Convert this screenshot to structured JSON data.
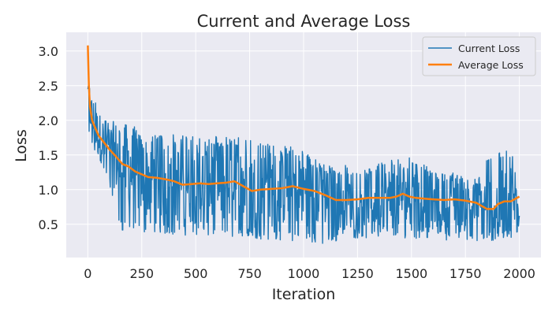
{
  "chart_data": {
    "type": "line",
    "title": "Current and Average Loss",
    "xlabel": "Iteration",
    "ylabel": "Loss",
    "xlim": [
      -100,
      2100
    ],
    "ylim": [
      0.02,
      3.27
    ],
    "xticks": [
      0,
      250,
      500,
      750,
      1000,
      1250,
      1500,
      1750,
      2000
    ],
    "yticks": [
      0.5,
      1.0,
      1.5,
      2.0,
      2.5,
      3.0
    ],
    "xtick_labels": [
      "0",
      "250",
      "500",
      "750",
      "1000",
      "1250",
      "1500",
      "1750",
      "2000"
    ],
    "ytick_labels": [
      "0.5",
      "1.0",
      "1.5",
      "2.0",
      "2.5",
      "3.0"
    ],
    "grid": true,
    "legend_position": "top-right",
    "series": [
      {
        "name": "Current Loss",
        "color": "#1f77b4",
        "style": "noisy",
        "min_band": [
          [
            0,
            1.75
          ],
          [
            100,
            1.05
          ],
          [
            150,
            0.4
          ],
          [
            400,
            0.35
          ],
          [
            700,
            0.3
          ],
          [
            1000,
            0.25
          ],
          [
            1100,
            0.2
          ],
          [
            1200,
            0.3
          ],
          [
            1500,
            0.3
          ],
          [
            1800,
            0.25
          ],
          [
            2000,
            0.3
          ]
        ],
        "max_band": [
          [
            0,
            2.5
          ],
          [
            100,
            2.0
          ],
          [
            150,
            1.95
          ],
          [
            400,
            1.8
          ],
          [
            700,
            1.75
          ],
          [
            1000,
            1.6
          ],
          [
            1100,
            1.35
          ],
          [
            1300,
            1.35
          ],
          [
            1460,
            1.5
          ],
          [
            1600,
            1.3
          ],
          [
            1800,
            1.2
          ],
          [
            1850,
            1.55
          ],
          [
            2000,
            1.58
          ]
        ]
      },
      {
        "name": "Average Loss",
        "color": "#ff7f0e",
        "x": [
          0,
          5,
          10,
          20,
          30,
          50,
          70,
          100,
          130,
          160,
          190,
          220,
          250,
          280,
          320,
          360,
          400,
          440,
          480,
          520,
          560,
          600,
          640,
          680,
          720,
          760,
          800,
          850,
          900,
          950,
          1000,
          1050,
          1100,
          1150,
          1200,
          1250,
          1300,
          1350,
          1400,
          1430,
          1460,
          1490,
          1520,
          1560,
          1600,
          1650,
          1700,
          1750,
          1800,
          1850,
          1880,
          1900,
          1930,
          1960,
          2000
        ],
        "y": [
          3.08,
          2.5,
          2.2,
          2.0,
          1.92,
          1.78,
          1.7,
          1.58,
          1.48,
          1.37,
          1.33,
          1.26,
          1.22,
          1.18,
          1.17,
          1.15,
          1.12,
          1.07,
          1.08,
          1.09,
          1.08,
          1.09,
          1.1,
          1.12,
          1.05,
          0.98,
          1.0,
          1.01,
          1.02,
          1.05,
          1.01,
          0.98,
          0.92,
          0.85,
          0.85,
          0.86,
          0.88,
          0.88,
          0.88,
          0.9,
          0.94,
          0.9,
          0.88,
          0.87,
          0.86,
          0.85,
          0.86,
          0.84,
          0.81,
          0.72,
          0.72,
          0.79,
          0.83,
          0.83,
          0.9
        ]
      }
    ]
  }
}
